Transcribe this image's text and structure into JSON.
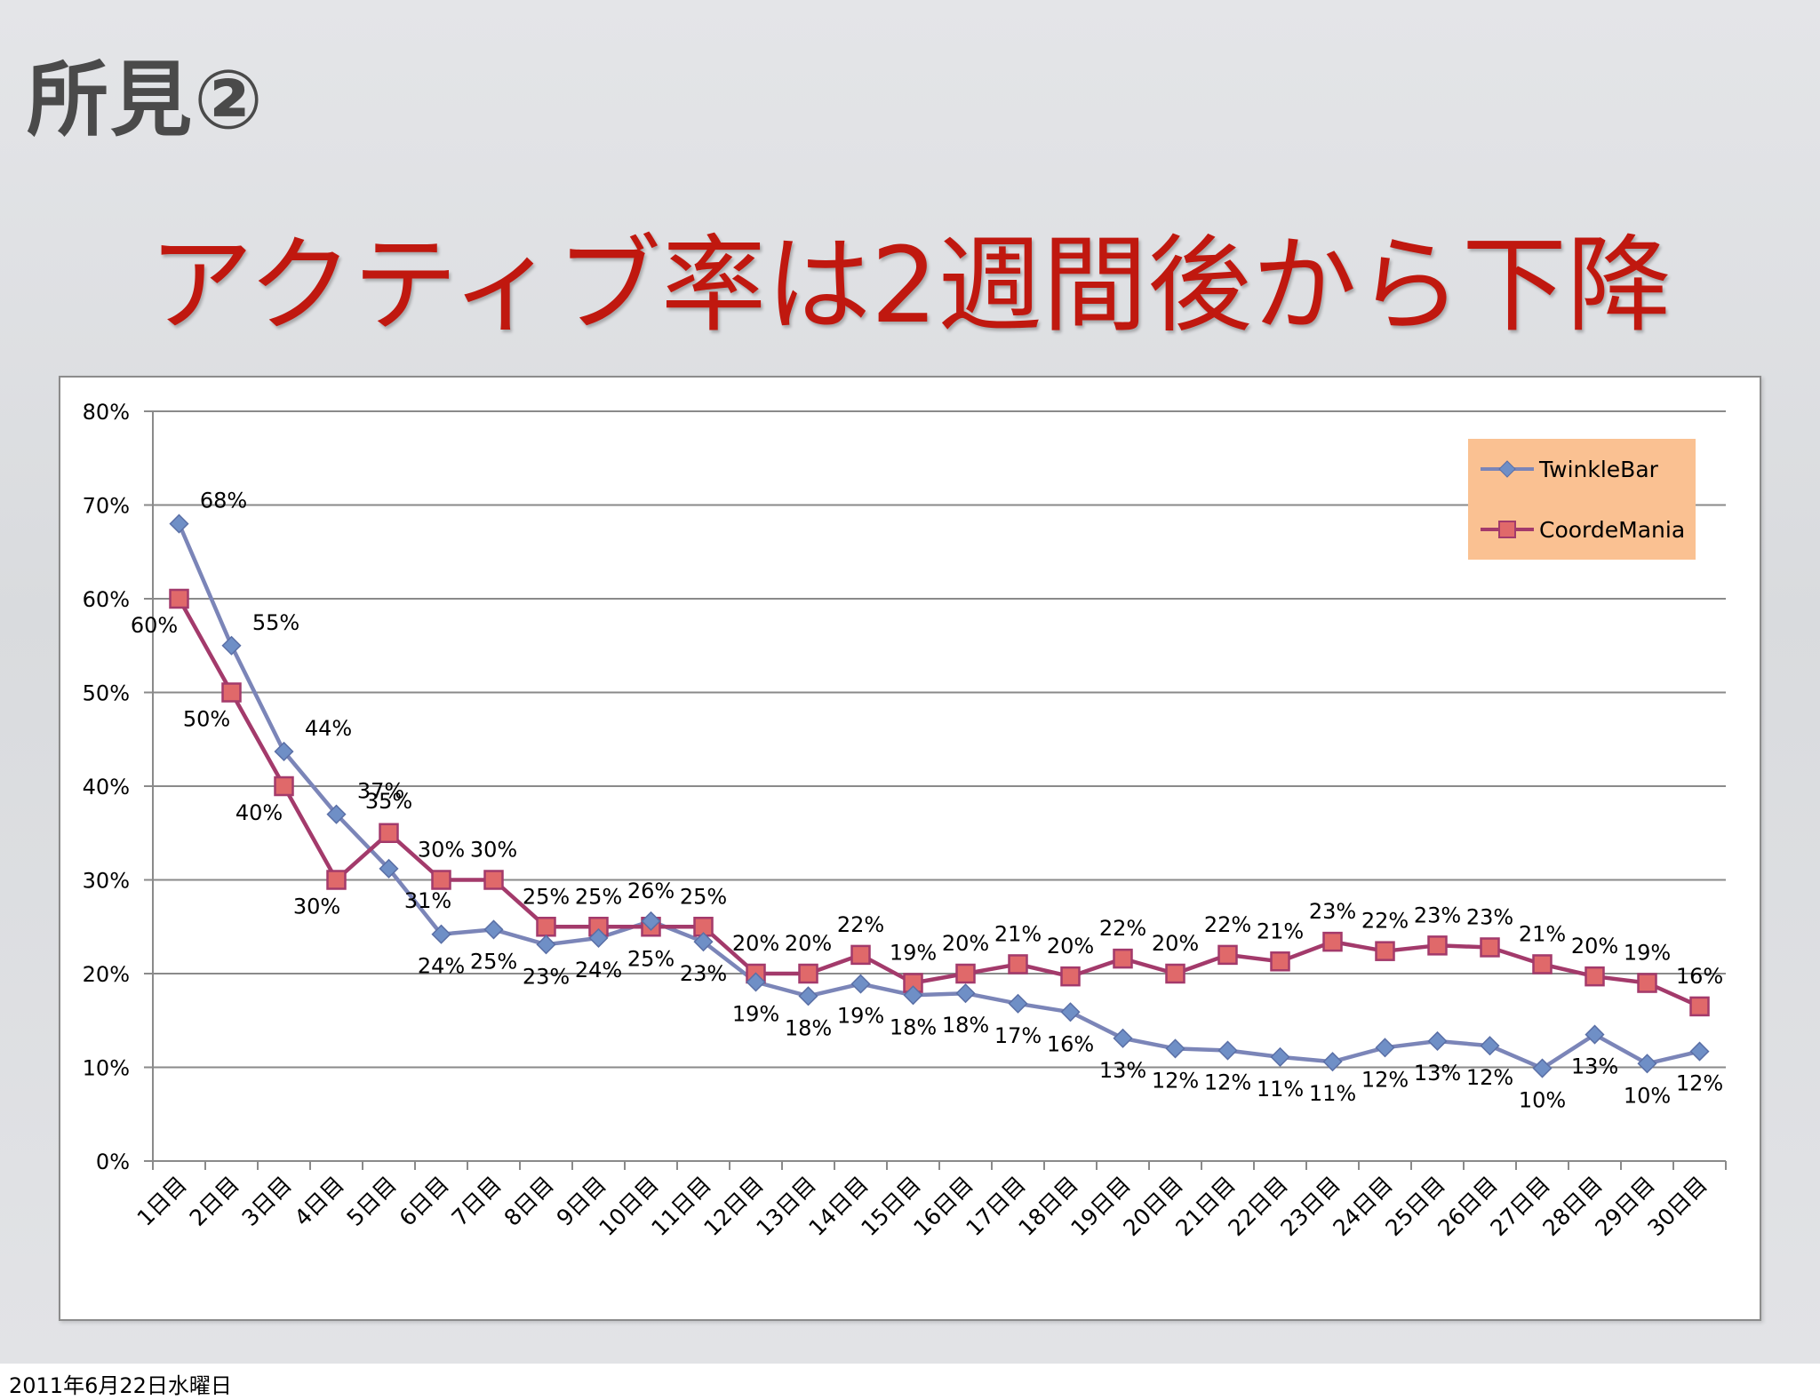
{
  "slide": {
    "heading": "所見②",
    "title": "アクティブ率は2週間後から下降",
    "footer_date": "2011年6月22日水曜日"
  },
  "colors": {
    "twinklebar_line": "#7b85b8",
    "twinklebar_marker": "#6f8fc6",
    "coordemania_line": "#a33a6b",
    "coordemania_marker": "#e0696a",
    "title": "#c0180f",
    "legend_bg": "#fac192"
  },
  "chart_data": {
    "type": "line",
    "title": "",
    "xlabel": "",
    "ylabel": "",
    "ylim": [
      0,
      80
    ],
    "y_ticks": [
      "0%",
      "10%",
      "20%",
      "30%",
      "40%",
      "50%",
      "60%",
      "70%",
      "80%"
    ],
    "grid": true,
    "legend_position": "top-right",
    "categories": [
      "1日目",
      "2日目",
      "3日目",
      "4日目",
      "5日目",
      "6日目",
      "7日目",
      "8日目",
      "9日目",
      "10日目",
      "11日目",
      "12日目",
      "13日目",
      "14日目",
      "15日目",
      "16日目",
      "17日目",
      "18日目",
      "19日目",
      "20日目",
      "21日目",
      "22日目",
      "23日目",
      "24日目",
      "25日目",
      "26日目",
      "27日目",
      "28日目",
      "29日目",
      "30日目"
    ],
    "series": [
      {
        "name": "TwinkleBar",
        "marker": "diamond",
        "values": [
          68,
          55,
          43.7,
          37,
          31.2,
          24.2,
          24.7,
          23.1,
          23.8,
          25.6,
          23.4,
          19.1,
          17.6,
          18.9,
          17.7,
          17.9,
          16.8,
          15.9,
          13.1,
          12,
          11.8,
          11.1,
          10.6,
          12.1,
          12.8,
          12.3,
          9.9,
          13.5,
          10.4,
          11.7
        ],
        "labels": [
          "68%",
          "55%",
          "44%",
          "37%",
          "31%",
          "24%",
          "25%",
          "23%",
          "24%",
          "26%",
          "23%",
          "19%",
          "18%",
          "19%",
          "18%",
          "18%",
          "17%",
          "16%",
          "13%",
          "12%",
          "12%",
          "11%",
          "11%",
          "12%",
          "13%",
          "12%",
          "10%",
          "13%",
          "10%",
          "12%"
        ]
      },
      {
        "name": "CoordeMania",
        "marker": "square",
        "values": [
          60,
          50,
          40,
          30,
          35,
          30,
          30,
          25,
          25,
          25,
          25,
          20,
          20,
          22,
          19,
          20,
          21,
          19.7,
          21.6,
          20,
          22,
          21.3,
          23.4,
          22.4,
          23,
          22.8,
          21,
          19.7,
          19,
          16.5
        ],
        "labels": [
          "60%",
          "50%",
          "40%",
          "30%",
          "35%",
          "30%",
          "30%",
          "25%",
          "25%",
          "25%",
          "25%",
          "20%",
          "20%",
          "22%",
          "19%",
          "20%",
          "21%",
          "20%",
          "22%",
          "20%",
          "22%",
          "21%",
          "23%",
          "22%",
          "23%",
          "23%",
          "21%",
          "20%",
          "19%",
          "16%"
        ]
      }
    ]
  }
}
